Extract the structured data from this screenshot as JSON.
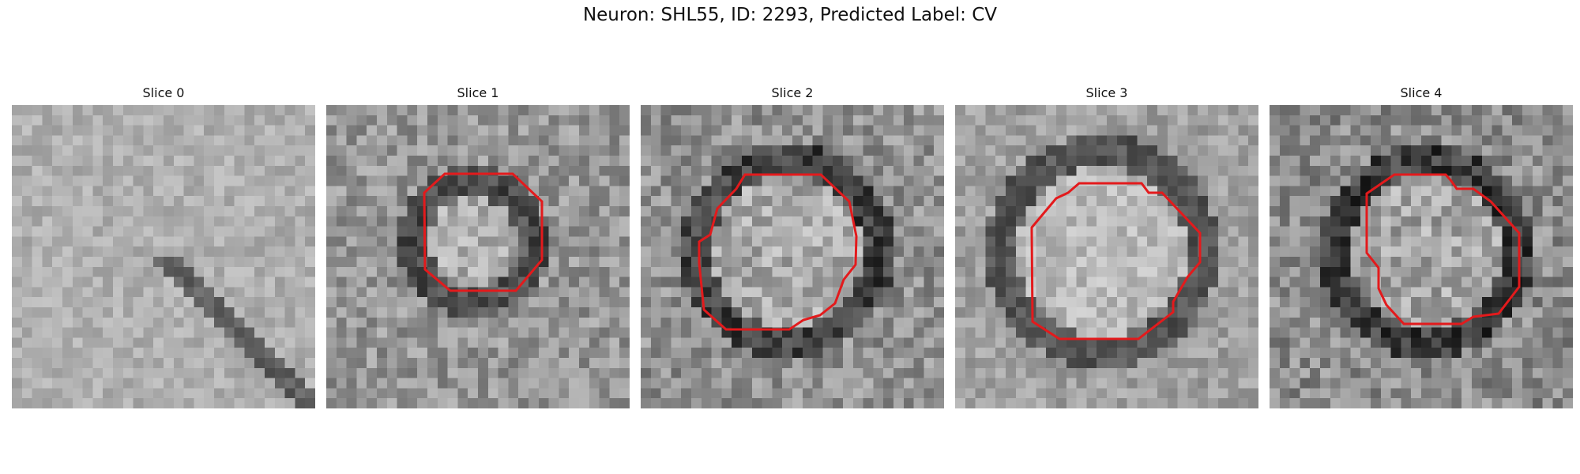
{
  "figure": {
    "title": "Neuron: SHL55, ID: 2293, Predicted Label: CV",
    "contour_color": "#e31a1c",
    "colormap": "gray"
  },
  "slices": [
    {
      "label": "Slice 0",
      "has_contour": false
    },
    {
      "label": "Slice 1",
      "has_contour": true
    },
    {
      "label": "Slice 2",
      "has_contour": true
    },
    {
      "label": "Slice 3",
      "has_contour": true
    },
    {
      "label": "Slice 4",
      "has_contour": true
    }
  ]
}
